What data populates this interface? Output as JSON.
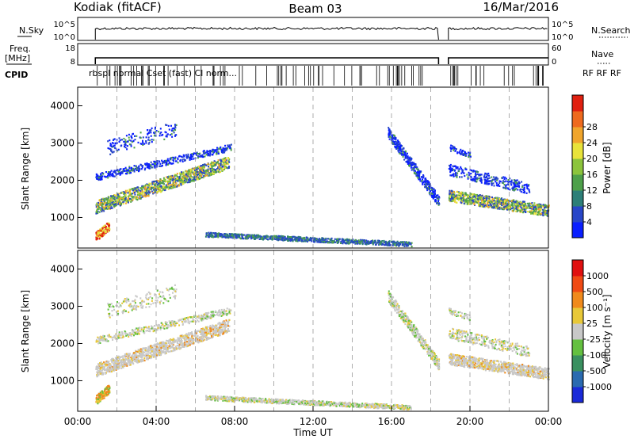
{
  "header": {
    "title_left": "Kodiak (fitACF)",
    "title_center": "Beam 03",
    "title_right": "16/Mar/2016"
  },
  "aux_panels": {
    "nsky_label": "N.Sky",
    "nsky_ticks": [
      "10^5",
      "10^0"
    ],
    "nsearch_label": "N.Search",
    "nsearch_ticks": [
      "10^5",
      "10^0"
    ],
    "freq_label_1": "Freq.",
    "freq_label_2": "[MHz]",
    "freq_ticks": [
      "18",
      "8"
    ],
    "nave_label": "Nave",
    "nave_ticks": [
      "60",
      "0"
    ],
    "cpid_label": "CPID",
    "cpid_text": "rbspl normal Cset (fast) Cl norm...",
    "cpid_right": "RF RF RF"
  },
  "chart_data": [
    {
      "type": "heatmap",
      "name": "power",
      "ylabel": "Slant Range [km]",
      "ylim": [
        180,
        4500
      ],
      "yticks": [
        1000,
        2000,
        3000,
        4000
      ],
      "xlim": [
        0,
        24
      ],
      "xticks": [
        "00:00",
        "04:00",
        "08:00",
        "12:00",
        "16:00",
        "20:00",
        "00:00"
      ],
      "colorbar_label": "Power [dB]",
      "colorbar_ticks": [
        "4",
        "8",
        "12",
        "16",
        "20",
        "24",
        "28"
      ],
      "colorbar_colors": [
        "#0a1fff",
        "#2846c8",
        "#2d7f78",
        "#4ea04a",
        "#8cc43c",
        "#e8e33a",
        "#f0a52c",
        "#ee6a1e",
        "#e02010"
      ]
    },
    {
      "type": "heatmap",
      "name": "velocity",
      "ylabel": "Slant Range [km]",
      "ylim": [
        180,
        4500
      ],
      "yticks": [
        1000,
        2000,
        3000,
        4000
      ],
      "xlim": [
        0,
        24
      ],
      "xticks": [
        "00:00",
        "04:00",
        "08:00",
        "12:00",
        "16:00",
        "20:00",
        "00:00"
      ],
      "xlabel": "Time UT",
      "colorbar_label": "Velocity [m s⁻¹]",
      "colorbar_ticks": [
        "1000",
        "500",
        "100",
        "25",
        "-25",
        "-100",
        "-500",
        "-1000"
      ],
      "colorbar_colors": [
        "#1a2ad8",
        "#2a6ab0",
        "#3a9060",
        "#64c040",
        "#c8c8c8",
        "#e8c838",
        "#f08a1c",
        "#f04a14",
        "#e01010"
      ]
    }
  ]
}
